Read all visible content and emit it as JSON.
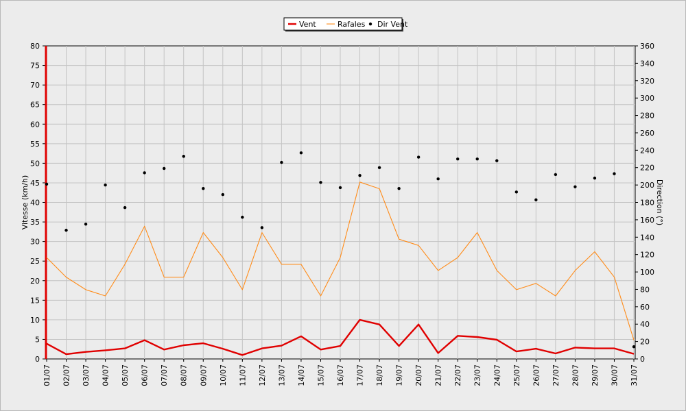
{
  "chart_data": {
    "type": "line",
    "categories": [
      "01/07",
      "02/07",
      "03/07",
      "04/07",
      "05/07",
      "06/07",
      "07/07",
      "08/07",
      "09/07",
      "10/07",
      "11/07",
      "12/07",
      "13/07",
      "14/07",
      "15/07",
      "16/07",
      "17/07",
      "18/07",
      "19/07",
      "20/07",
      "21/07",
      "22/07",
      "23/07",
      "24/07",
      "25/07",
      "26/07",
      "27/07",
      "28/07",
      "29/07",
      "30/07",
      "31/07"
    ],
    "ylabel": "Vitesse (km/h)",
    "y2label": "Direction (°)",
    "ylim": [
      0,
      80
    ],
    "y2lim": [
      0,
      360
    ],
    "yticks": [
      0,
      5,
      10,
      15,
      20,
      25,
      30,
      35,
      40,
      45,
      50,
      55,
      60,
      65,
      70,
      75,
      80
    ],
    "y2ticks": [
      0,
      20,
      40,
      60,
      80,
      100,
      120,
      140,
      160,
      180,
      200,
      220,
      240,
      260,
      280,
      300,
      320,
      340,
      360
    ],
    "grid": true,
    "legend_position": "top-center",
    "series": [
      {
        "name": "Vent",
        "color": "#e00000",
        "style": "line-thick",
        "axis": "left",
        "values": [
          3.9,
          1.2,
          1.8,
          2.2,
          2.7,
          4.8,
          2.4,
          3.5,
          4.0,
          2.6,
          1.0,
          2.7,
          3.4,
          5.8,
          2.4,
          3.3,
          10.0,
          8.8,
          3.3,
          8.8,
          1.5,
          5.9,
          5.6,
          4.9,
          1.9,
          2.6,
          1.4,
          2.9,
          2.7,
          2.7,
          1.3
        ]
      },
      {
        "name": "Rafales",
        "color": "#ff8c1a",
        "style": "line-thin",
        "axis": "left",
        "values": [
          25.9,
          20.9,
          17.7,
          16.1,
          24.2,
          33.9,
          20.9,
          20.9,
          32.3,
          25.9,
          17.7,
          32.3,
          24.2,
          24.2,
          16.1,
          25.9,
          45.2,
          43.5,
          30.6,
          29.0,
          22.6,
          25.9,
          32.3,
          22.6,
          17.7,
          19.3,
          16.1,
          22.6,
          27.4,
          20.9,
          4.8
        ]
      },
      {
        "name": "Dir Vent",
        "color": "#000000",
        "style": "points",
        "axis": "right",
        "values": [
          201,
          148,
          155,
          200,
          174,
          214,
          219,
          233,
          196,
          189,
          163,
          151,
          226,
          237,
          203,
          197,
          211,
          220,
          196,
          232,
          207,
          230,
          230,
          228,
          192,
          183,
          212,
          198,
          208,
          213,
          14
        ]
      }
    ]
  }
}
